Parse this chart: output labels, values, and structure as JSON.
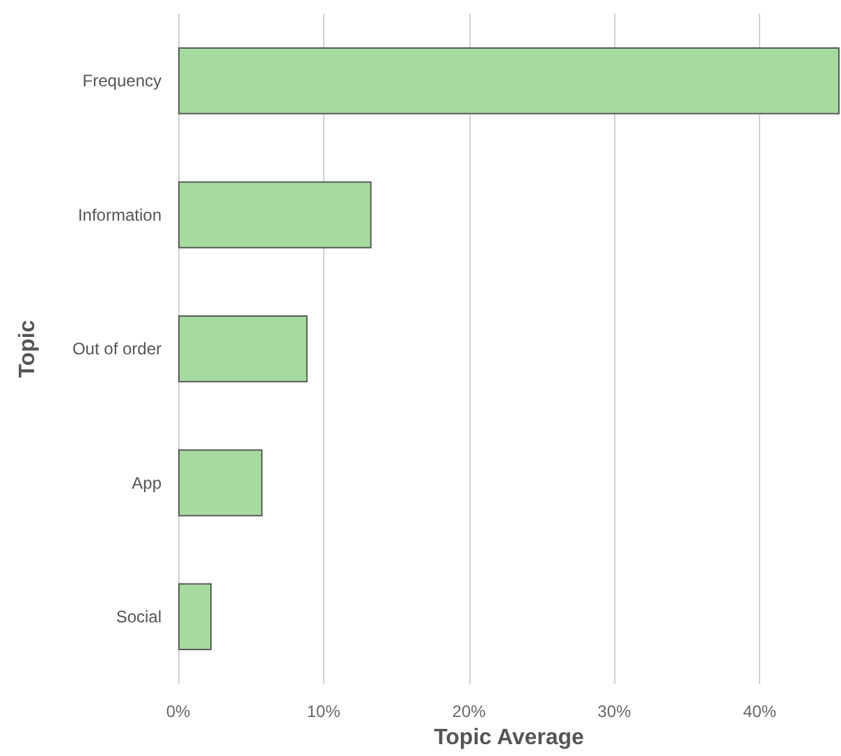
{
  "chart_data": {
    "type": "bar",
    "orientation": "horizontal",
    "categories": [
      "Frequency",
      "Information",
      "Out of order",
      "App",
      "Social"
    ],
    "values": [
      45.5,
      13.3,
      8.9,
      5.8,
      2.3
    ],
    "color": "#a6dba0",
    "xlabel": "Topic Average",
    "ylabel": "Topic",
    "xlim": [
      0,
      45.5
    ],
    "xticks": [
      {
        "value": 0,
        "label": "0%"
      },
      {
        "value": 10,
        "label": "10%"
      },
      {
        "value": 20,
        "label": "20%"
      },
      {
        "value": 30,
        "label": "30%"
      },
      {
        "value": 40,
        "label": "40%"
      }
    ],
    "grid": "x"
  }
}
